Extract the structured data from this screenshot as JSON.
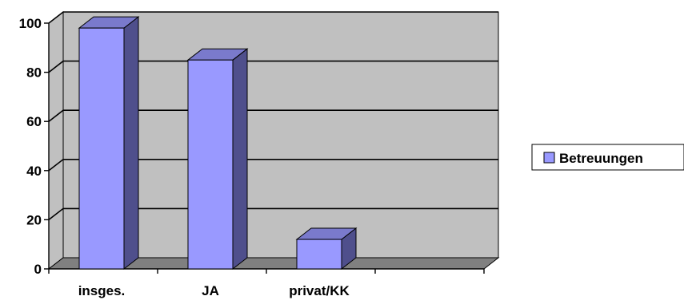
{
  "chart_data": {
    "type": "bar",
    "categories": [
      "insges.",
      "JA",
      "privat/KK",
      ""
    ],
    "series": [
      {
        "name": "Betreuungen",
        "values": [
          98,
          85,
          12,
          null
        ]
      }
    ],
    "ylim": [
      0,
      100
    ],
    "yticks": [
      0,
      20,
      40,
      60,
      80,
      100
    ],
    "grid": true,
    "legend": "right",
    "three_d": true,
    "colors": {
      "bar_front": "#9999ff",
      "bar_side": "#4f4f8c",
      "bar_top": "#7a7acc",
      "wall": "#c0c0c0",
      "floor": "#808080",
      "outline": "#000000"
    }
  }
}
